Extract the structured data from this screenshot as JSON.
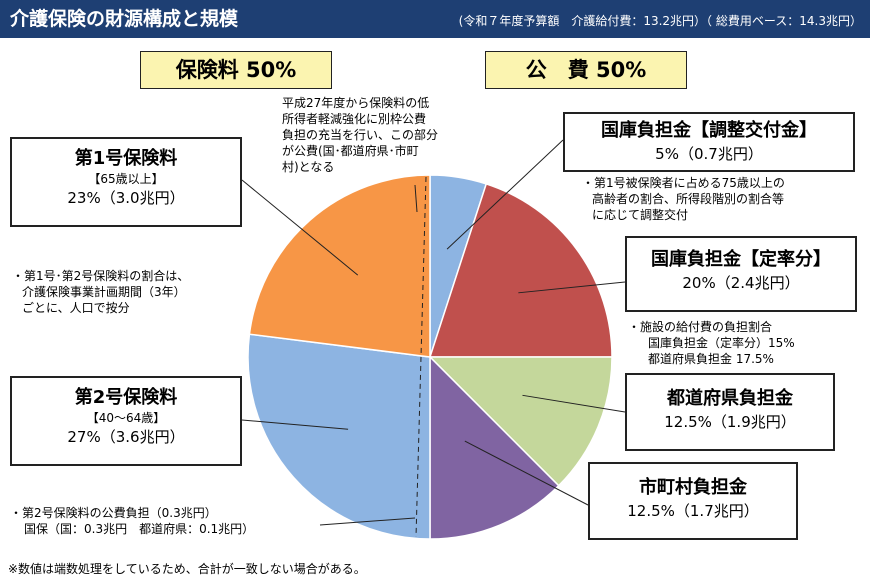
{
  "header": {
    "title": "介護保険の財源構成と規模",
    "subtitle": "(令和７年度予算額　介護給付費：13.2兆円）（ 総費用ベース：14.3兆円）"
  },
  "groups": {
    "insurance_label": "保険料 50%",
    "public_label": "公　費 50%"
  },
  "labels": {
    "first_insured": {
      "title": "第1号保険料",
      "sub": "【65歳以上】",
      "value": "23%（3.0兆円）"
    },
    "second_insured": {
      "title": "第2号保険料",
      "sub": "【40～64歳】",
      "value": "27%（3.6兆円）"
    },
    "national_adjust": {
      "title": "国庫負担金【調整交付金】",
      "value": "5%（0.7兆円）"
    },
    "national_fixed": {
      "title": "国庫負担金【定率分】",
      "value": "20%（2.4兆円）"
    },
    "prefecture": {
      "title": "都道府県負担金",
      "value": "12.5%（1.9兆円）"
    },
    "municipality": {
      "title": "市町村負担金",
      "value": "12.5%（1.7兆円）"
    }
  },
  "notes": {
    "top": [
      "平成27年度から保険料の低",
      "所得者軽減強化に別枠公費",
      "負担の充当を行い、この部分",
      "が公費(国･都道府県･市町",
      "村)となる"
    ],
    "ratio": [
      "・第1号･第2号保険料の割合は、",
      "介護保険事業計画期間（3年）",
      "ごとに、人口で按分"
    ],
    "adjust": [
      "・第1号被保険者に占める75歳以上の",
      "高齢者の割合、所得段階別の割合等",
      "に応じて調整交付"
    ],
    "facility": [
      "・施設の給付費の負担割合",
      "国庫負担金（定率分）15%",
      "都道府県負担金 17.5%"
    ],
    "second_public": [
      "・第2号保険料の公費負担（0.3兆円）",
      "国保（国：0.3兆円　都道府県：0.1兆円）"
    ],
    "footnote": "※数値は端数処理をしているため、合計が一致しない場合がある。"
  },
  "chart_data": {
    "type": "pie",
    "series": [
      {
        "name": "国庫負担金【調整交付金】",
        "value": 5,
        "color": "#8db4e2"
      },
      {
        "name": "国庫負担金【定率分】",
        "value": 20,
        "color": "#c0504d"
      },
      {
        "name": "都道府県負担金",
        "value": 12.5,
        "color": "#c4d79b"
      },
      {
        "name": "市町村負担金",
        "value": 12.5,
        "color": "#8064a2"
      },
      {
        "name": "第2号保険料",
        "value": 27,
        "color": "#8db4e2"
      },
      {
        "name": "第1号保険料",
        "value": 23,
        "color": "#f79646"
      }
    ]
  }
}
